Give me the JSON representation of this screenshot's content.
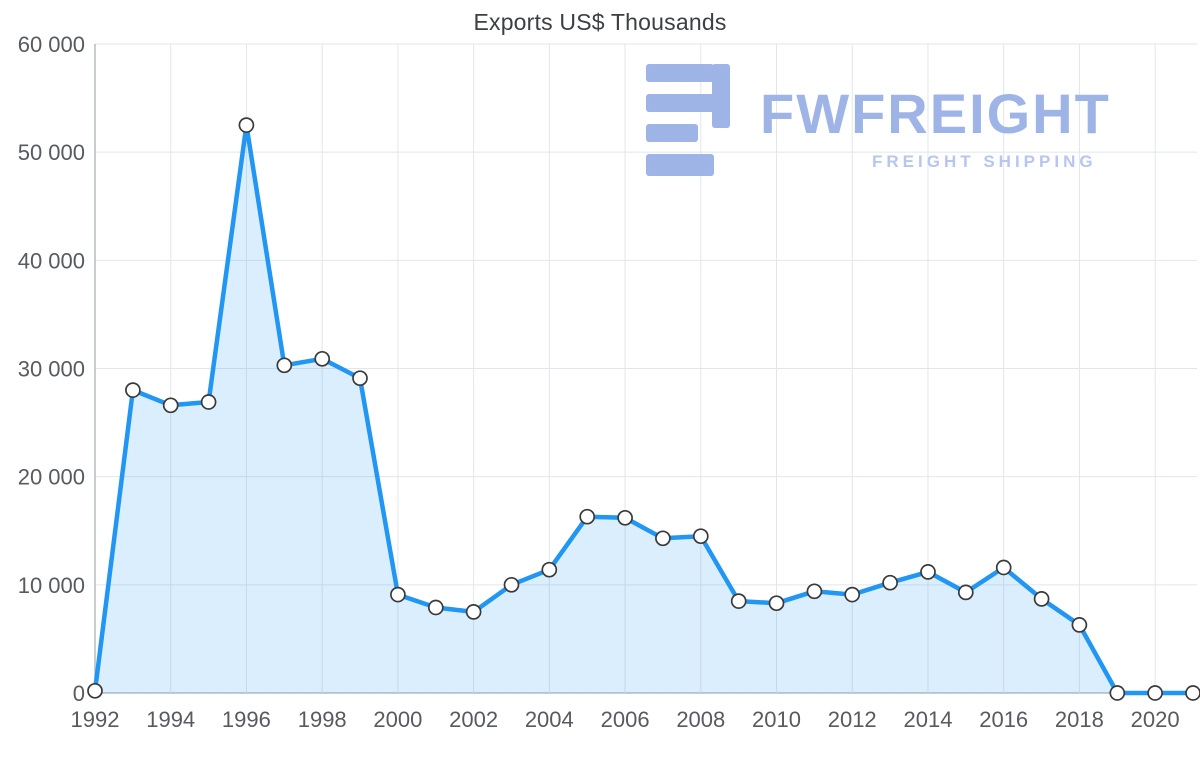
{
  "watermark": {
    "brand": "FWFREIGHT",
    "tagline": "FREIGHT SHIPPING",
    "color": "#9fb4e6"
  },
  "chart_data": {
    "type": "area",
    "title": "Exports US$ Thousands",
    "xlabel": "",
    "ylabel": "Exports US$ Thousands",
    "legend": "none",
    "grid": true,
    "ylim": [
      0,
      60000
    ],
    "x": [
      1992,
      1993,
      1994,
      1995,
      1996,
      1997,
      1998,
      1999,
      2000,
      2001,
      2002,
      2003,
      2004,
      2005,
      2006,
      2007,
      2008,
      2009,
      2010,
      2011,
      2012,
      2013,
      2014,
      2015,
      2016,
      2017,
      2018,
      2019,
      2020,
      2021
    ],
    "values": [
      200,
      28000,
      26600,
      26900,
      52500,
      30300,
      30900,
      29100,
      9100,
      7900,
      7500,
      10000,
      11400,
      16300,
      16200,
      14300,
      14500,
      8500,
      8300,
      9400,
      9100,
      10200,
      11200,
      9300,
      11600,
      8700,
      6300,
      0,
      0,
      0
    ],
    "yticks": [
      {
        "value": 0,
        "label": "0"
      },
      {
        "value": 10000,
        "label": "10 000"
      },
      {
        "value": 20000,
        "label": "20 000"
      },
      {
        "value": 30000,
        "label": "30 000"
      },
      {
        "value": 40000,
        "label": "40 000"
      },
      {
        "value": 50000,
        "label": "50 000"
      },
      {
        "value": 60000,
        "label": "60 000"
      }
    ],
    "xticks": [
      {
        "value": 1992,
        "label": "1992"
      },
      {
        "value": 1994,
        "label": "1994"
      },
      {
        "value": 1996,
        "label": "1996"
      },
      {
        "value": 1998,
        "label": "1998"
      },
      {
        "value": 2000,
        "label": "2000"
      },
      {
        "value": 2002,
        "label": "2002"
      },
      {
        "value": 2004,
        "label": "2004"
      },
      {
        "value": 2006,
        "label": "2006"
      },
      {
        "value": 2008,
        "label": "2008"
      },
      {
        "value": 2010,
        "label": "2010"
      },
      {
        "value": 2012,
        "label": "2012"
      },
      {
        "value": 2014,
        "label": "2014"
      },
      {
        "value": 2016,
        "label": "2016"
      },
      {
        "value": 2018,
        "label": "2018"
      },
      {
        "value": 2020,
        "label": "2020"
      }
    ],
    "colors": {
      "line": "#2196F3",
      "fill": "rgba(33,150,243,0.16)",
      "grid": "#E2E6EB",
      "axis": "#B7BCC2",
      "marker_fill": "#FFFFFF",
      "marker_stroke": "#3A3A3A",
      "label": "#575B60"
    }
  }
}
